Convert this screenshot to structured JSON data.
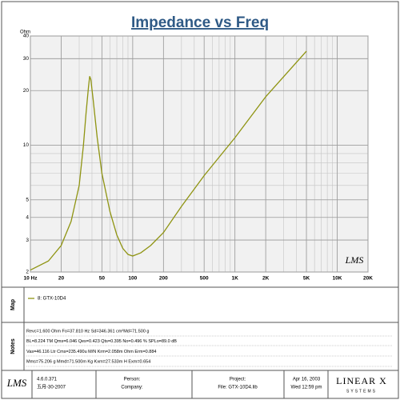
{
  "header": {
    "title": "Impedance vs Freq"
  },
  "chart_data": {
    "type": "line",
    "y_unit": "Ohm",
    "watermark": "LMS",
    "x": [
      10,
      15,
      20,
      25,
      30,
      33,
      35,
      37,
      38,
      39,
      41,
      45,
      50,
      60,
      70,
      80,
      90,
      100,
      120,
      150,
      200,
      300,
      500,
      1000,
      2000,
      5000
    ],
    "series": [
      {
        "name": "8: GTX-10D4",
        "color": "#8f9412",
        "values": [
          2.05,
          2.3,
          2.8,
          3.8,
          6,
          10,
          15,
          21,
          24,
          23,
          18,
          11,
          7,
          4.3,
          3.2,
          2.7,
          2.5,
          2.45,
          2.55,
          2.8,
          3.3,
          4.6,
          6.8,
          11,
          18.5,
          33
        ]
      }
    ],
    "xlim": [
      10,
      20000
    ],
    "ylim": [
      2,
      40
    ],
    "log_x": true,
    "log_y": true,
    "grid": true,
    "xticks": [
      {
        "value": 10,
        "label": "10 Hz"
      },
      20,
      50,
      100,
      200,
      500,
      {
        "value": 1000,
        "label": "1K"
      },
      {
        "value": 2000,
        "label": "2K"
      },
      {
        "value": 5000,
        "label": "5K"
      },
      {
        "value": 10000,
        "label": "10K"
      },
      {
        "value": 20000,
        "label": "20K"
      }
    ],
    "yticks": [
      2,
      3,
      4,
      5,
      10,
      20,
      30,
      40
    ]
  },
  "map": {
    "label": "Map"
  },
  "notes": {
    "label": "Notes",
    "lines": [
      "Revc=1.600 Ohm  Fo=37.810 Hz  Sd=346.361 cm²Md=71.500 g",
      "BL=8.224 TM  Qms=6.046  Qes=0.423  Qts=0.395  No=0.496 %  SPLo=89.0 dB",
      "Vas=46.116 Ltr  Cms=235.490u M/N  Krm=2.058m Ohm  Erm=0.884",
      "Mms=75.206 g  Mmd=71.500m Kg  Kxm=27.533m H  Exm=0.654"
    ]
  },
  "footer": {
    "logo": "LMS",
    "version": "4.6.0.371",
    "build_date": "五月-30-2007",
    "person": "Person:",
    "company": "Company:",
    "project": "Project:",
    "file": "File: GTX-10D4.lib",
    "date": "Apr 16, 2003",
    "time": "Wed 12:59 pm",
    "brand": "LINEAR X",
    "brand_sub": "SYSTEMS"
  }
}
